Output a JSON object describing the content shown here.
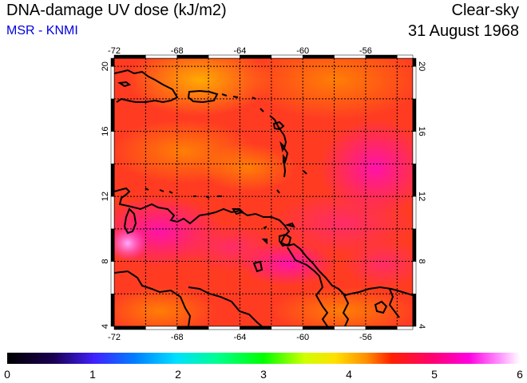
{
  "header": {
    "title": "DNA-damage UV dose (kJ/m2)",
    "source": "MSR - KNMI",
    "mode": "Clear-sky",
    "date": "31 August 1968"
  },
  "map": {
    "lon_range": [
      -72,
      -53
    ],
    "lat_range": [
      4,
      20.5
    ],
    "lon_ticks": [
      {
        "value": -72,
        "label": "-72"
      },
      {
        "value": -68,
        "label": "-68"
      },
      {
        "value": -64,
        "label": "-64"
      },
      {
        "value": -60,
        "label": "-60"
      },
      {
        "value": -56,
        "label": "-56"
      }
    ],
    "lat_ticks": [
      {
        "value": 4,
        "label": "4"
      },
      {
        "value": 8,
        "label": "8"
      },
      {
        "value": 12,
        "label": "12"
      },
      {
        "value": 16,
        "label": "16"
      },
      {
        "value": 20,
        "label": "20"
      }
    ]
  },
  "colorbar": {
    "min": 0,
    "max": 6,
    "ticks": [
      {
        "value": 0,
        "label": "0"
      },
      {
        "value": 1,
        "label": "1"
      },
      {
        "value": 2,
        "label": "2"
      },
      {
        "value": 3,
        "label": "3"
      },
      {
        "value": 4,
        "label": "4"
      },
      {
        "value": 5,
        "label": "5"
      },
      {
        "value": 6,
        "label": "6"
      }
    ]
  }
}
